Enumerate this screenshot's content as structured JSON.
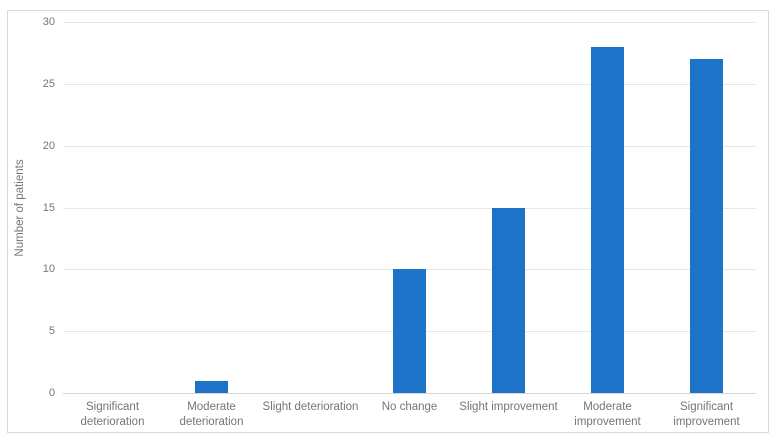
{
  "colors": {
    "bar": "#1c73c8",
    "gridline": "#e7e7e7",
    "axis_line": "#d6d6d6",
    "text": "#757575",
    "frame_border": "#d9d9d9"
  },
  "chart_data": {
    "type": "bar",
    "title": "",
    "xlabel": "",
    "ylabel": "Number of patients",
    "categories": [
      "Significant deterioration",
      "Moderate deterioration",
      "Slight deterioration",
      "No change",
      "Slight improvement",
      "Moderate improvement",
      "Significant improvement"
    ],
    "values": [
      0,
      1,
      0,
      10,
      15,
      28,
      27
    ],
    "ylim": [
      0,
      30
    ],
    "ytick_step": 5,
    "grid": "horizontal",
    "legend": "none"
  }
}
